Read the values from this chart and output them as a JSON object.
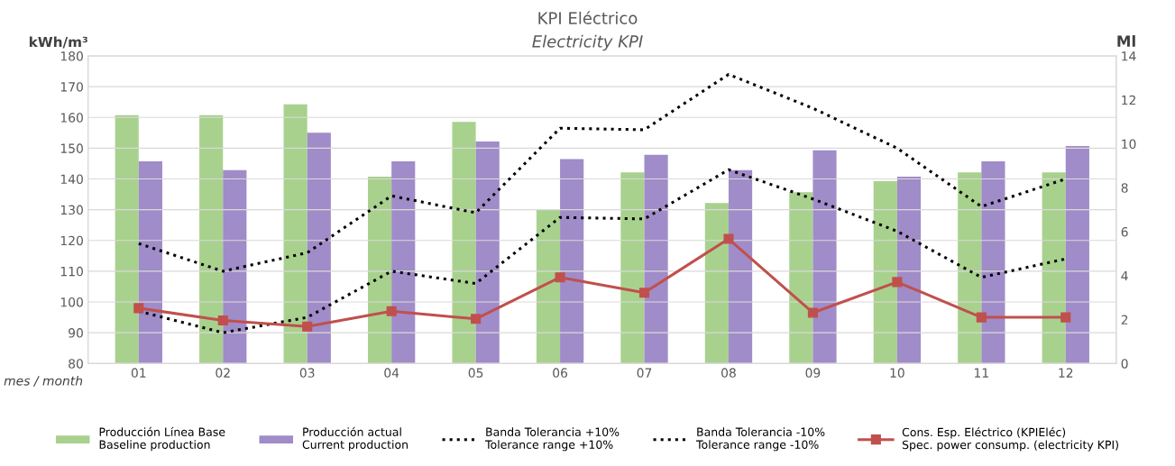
{
  "chart_data": {
    "type": "bar",
    "title": "KPI Eléctrico",
    "subtitle": "Electricity KPI",
    "xlabel": "mes / month",
    "ylabel": "kWh/m³",
    "y2label": "Ml",
    "categories": [
      "01",
      "02",
      "03",
      "04",
      "05",
      "06",
      "07",
      "08",
      "09",
      "10",
      "11",
      "12"
    ],
    "series": [
      {
        "name": "Producción Línea Base\nBaseline production",
        "color": "#a9d18e",
        "axis": "y2",
        "values": [
          11.3,
          11.3,
          11.8,
          8.5,
          11.0,
          7.0,
          8.7,
          7.3,
          7.8,
          8.3,
          8.7,
          8.7
        ]
      },
      {
        "name": "Producción actual\nCurrent production",
        "color": "#a08cc8",
        "axis": "y2",
        "values": [
          9.2,
          8.8,
          10.5,
          9.2,
          10.1,
          9.3,
          9.5,
          8.8,
          9.7,
          8.5,
          9.2,
          9.9
        ]
      },
      {
        "name": "Banda Tolerancia +10%\nTolerance range +10%",
        "type": "line",
        "color": "#000000",
        "line_style": "dotted",
        "marker": "none",
        "values": [
          119,
          110,
          116,
          134.5,
          129,
          156.5,
          156,
          174,
          163,
          150,
          131,
          140
        ]
      },
      {
        "name": "Banda Tolerancia -10%\nTolerance range -10%",
        "type": "line",
        "color": "#000000",
        "line_style": "dotted",
        "marker": "none",
        "values": [
          97,
          90,
          95,
          110,
          106,
          127.5,
          127,
          143,
          133.5,
          123,
          108,
          114
        ]
      },
      {
        "name": "Cons. Esp. Eléctrico (KPIEléc)\nSpec. power consump. (electricity KPI)",
        "type": "line",
        "color": "#c0504d",
        "line_style": "solid",
        "marker": "square",
        "values": [
          98,
          94,
          92,
          97,
          94.5,
          108,
          103,
          120.5,
          96.5,
          106.5,
          95,
          95
        ]
      }
    ],
    "ylim": [
      80,
      180
    ],
    "yticks": [
      80,
      90,
      100,
      110,
      120,
      130,
      140,
      150,
      160,
      170,
      180
    ],
    "y2lim": [
      0,
      14
    ],
    "y2ticks": [
      0,
      2,
      4,
      6,
      8,
      10,
      12,
      14
    ],
    "grid": "y",
    "legend": "bottom"
  }
}
